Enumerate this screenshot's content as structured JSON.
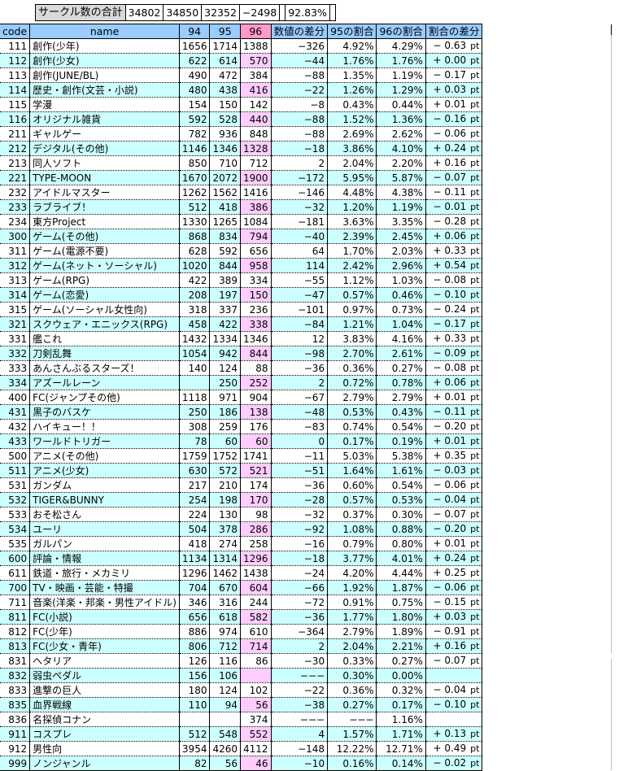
{
  "summary": {
    "label": "サークル数の合計",
    "v94": "34802",
    "v95": "34850",
    "v96": "32352",
    "diff": "−2498",
    "r95": "",
    "r96": "92.83%",
    "rdiff": ""
  },
  "header": {
    "code": "code",
    "name": "name",
    "c94": "94",
    "c95": "95",
    "c96": "96",
    "diff": "数値の差分",
    "r95": "95の割合",
    "r96": "96の割合",
    "rdiff": "割合の差分"
  },
  "colors": {
    "header_bg": "#99ccff",
    "header_96_bg": "#ff99cc",
    "alt_row_bg": "#ccffff",
    "alt_96_bg": "#ffccff",
    "summary_label_bg": "#d9d9d9"
  },
  "rows": [
    {
      "code": "111",
      "name": "創作(少年)",
      "v94": "1656",
      "v95": "1714",
      "v96": "1388",
      "diff": "−326",
      "r95": "4.92%",
      "r96": "4.29%",
      "rdiff": "− 0.63",
      "unit": "pt"
    },
    {
      "code": "112",
      "name": "創作(少女)",
      "v94": "622",
      "v95": "614",
      "v96": "570",
      "diff": "−44",
      "r95": "1.76%",
      "r96": "1.76%",
      "rdiff": "+ 0.00",
      "unit": "pt"
    },
    {
      "code": "113",
      "name": "創作(JUNE/BL)",
      "v94": "490",
      "v95": "472",
      "v96": "384",
      "diff": "−88",
      "r95": "1.35%",
      "r96": "1.19%",
      "rdiff": "− 0.17",
      "unit": "pt"
    },
    {
      "code": "114",
      "name": "歴史・創作(文芸・小説)",
      "v94": "480",
      "v95": "438",
      "v96": "416",
      "diff": "−22",
      "r95": "1.26%",
      "r96": "1.29%",
      "rdiff": "+ 0.03",
      "unit": "pt"
    },
    {
      "code": "115",
      "name": "学漫",
      "v94": "154",
      "v95": "150",
      "v96": "142",
      "diff": "−8",
      "r95": "0.43%",
      "r96": "0.44%",
      "rdiff": "+ 0.01",
      "unit": "pt"
    },
    {
      "code": "116",
      "name": "オリジナル雑貨",
      "v94": "592",
      "v95": "528",
      "v96": "440",
      "diff": "−88",
      "r95": "1.52%",
      "r96": "1.36%",
      "rdiff": "− 0.16",
      "unit": "pt"
    },
    {
      "code": "211",
      "name": "ギャルゲー",
      "v94": "782",
      "v95": "936",
      "v96": "848",
      "diff": "−88",
      "r95": "2.69%",
      "r96": "2.62%",
      "rdiff": "− 0.06",
      "unit": "pt"
    },
    {
      "code": "212",
      "name": "デジタル(その他)",
      "v94": "1146",
      "v95": "1346",
      "v96": "1328",
      "diff": "−18",
      "r95": "3.86%",
      "r96": "4.10%",
      "rdiff": "+ 0.24",
      "unit": "pt"
    },
    {
      "code": "213",
      "name": "同人ソフト",
      "v94": "850",
      "v95": "710",
      "v96": "712",
      "diff": "2",
      "r95": "2.04%",
      "r96": "2.20%",
      "rdiff": "+ 0.16",
      "unit": "pt"
    },
    {
      "code": "221",
      "name": "TYPE-MOON",
      "v94": "1670",
      "v95": "2072",
      "v96": "1900",
      "diff": "−172",
      "r95": "5.95%",
      "r96": "5.87%",
      "rdiff": "− 0.07",
      "unit": "pt"
    },
    {
      "code": "232",
      "name": "アイドルマスター",
      "v94": "1262",
      "v95": "1562",
      "v96": "1416",
      "diff": "−146",
      "r95": "4.48%",
      "r96": "4.38%",
      "rdiff": "− 0.11",
      "unit": "pt"
    },
    {
      "code": "233",
      "name": "ラブライブ！",
      "v94": "512",
      "v95": "418",
      "v96": "386",
      "diff": "−32",
      "r95": "1.20%",
      "r96": "1.19%",
      "rdiff": "− 0.01",
      "unit": "pt"
    },
    {
      "code": "234",
      "name": "東方Project",
      "v94": "1330",
      "v95": "1265",
      "v96": "1084",
      "diff": "−181",
      "r95": "3.63%",
      "r96": "3.35%",
      "rdiff": "− 0.28",
      "unit": "pt"
    },
    {
      "code": "300",
      "name": "ゲーム(その他)",
      "v94": "868",
      "v95": "834",
      "v96": "794",
      "diff": "−40",
      "r95": "2.39%",
      "r96": "2.45%",
      "rdiff": "+ 0.06",
      "unit": "pt"
    },
    {
      "code": "311",
      "name": "ゲーム(電源不要)",
      "v94": "628",
      "v95": "592",
      "v96": "656",
      "diff": "64",
      "r95": "1.70%",
      "r96": "2.03%",
      "rdiff": "+ 0.33",
      "unit": "pt"
    },
    {
      "code": "312",
      "name": "ゲーム(ネット・ソーシャル)",
      "v94": "1020",
      "v95": "844",
      "v96": "958",
      "diff": "114",
      "r95": "2.42%",
      "r96": "2.96%",
      "rdiff": "+ 0.54",
      "unit": "pt"
    },
    {
      "code": "313",
      "name": "ゲーム(RPG)",
      "v94": "422",
      "v95": "389",
      "v96": "334",
      "diff": "−55",
      "r95": "1.12%",
      "r96": "1.03%",
      "rdiff": "− 0.08",
      "unit": "pt"
    },
    {
      "code": "314",
      "name": "ゲーム(恋愛)",
      "v94": "208",
      "v95": "197",
      "v96": "150",
      "diff": "−47",
      "r95": "0.57%",
      "r96": "0.46%",
      "rdiff": "− 0.10",
      "unit": "pt"
    },
    {
      "code": "315",
      "name": "ゲーム(ソーシャル女性向)",
      "v94": "318",
      "v95": "337",
      "v96": "236",
      "diff": "−101",
      "r95": "0.97%",
      "r96": "0.73%",
      "rdiff": "− 0.24",
      "unit": "pt"
    },
    {
      "code": "321",
      "name": "スクウェア・エニックス(RPG)",
      "v94": "458",
      "v95": "422",
      "v96": "338",
      "diff": "−84",
      "r95": "1.21%",
      "r96": "1.04%",
      "rdiff": "− 0.17",
      "unit": "pt"
    },
    {
      "code": "331",
      "name": "艦これ",
      "v94": "1432",
      "v95": "1334",
      "v96": "1346",
      "diff": "12",
      "r95": "3.83%",
      "r96": "4.16%",
      "rdiff": "+ 0.33",
      "unit": "pt"
    },
    {
      "code": "332",
      "name": "刀剣乱舞",
      "v94": "1054",
      "v95": "942",
      "v96": "844",
      "diff": "−98",
      "r95": "2.70%",
      "r96": "2.61%",
      "rdiff": "− 0.09",
      "unit": "pt"
    },
    {
      "code": "333",
      "name": "あんさんぶるスターズ！",
      "v94": "140",
      "v95": "124",
      "v96": "88",
      "diff": "−36",
      "r95": "0.36%",
      "r96": "0.27%",
      "rdiff": "− 0.08",
      "unit": "pt"
    },
    {
      "code": "334",
      "name": "アズールレーン",
      "v94": "",
      "v95": "250",
      "v96": "252",
      "diff": "2",
      "r95": "0.72%",
      "r96": "0.78%",
      "rdiff": "+ 0.06",
      "unit": "pt"
    },
    {
      "code": "400",
      "name": "FC(ジャンプその他)",
      "v94": "1118",
      "v95": "971",
      "v96": "904",
      "diff": "−67",
      "r95": "2.79%",
      "r96": "2.79%",
      "rdiff": "+ 0.01",
      "unit": "pt"
    },
    {
      "code": "431",
      "name": "黒子のバスケ",
      "v94": "250",
      "v95": "186",
      "v96": "138",
      "diff": "−48",
      "r95": "0.53%",
      "r96": "0.43%",
      "rdiff": "− 0.11",
      "unit": "pt"
    },
    {
      "code": "432",
      "name": "ハイキュー！！",
      "v94": "308",
      "v95": "259",
      "v96": "176",
      "diff": "−83",
      "r95": "0.74%",
      "r96": "0.54%",
      "rdiff": "− 0.20",
      "unit": "pt"
    },
    {
      "code": "433",
      "name": "ワールドトリガー",
      "v94": "78",
      "v95": "60",
      "v96": "60",
      "diff": "0",
      "r95": "0.17%",
      "r96": "0.19%",
      "rdiff": "+ 0.01",
      "unit": "pt"
    },
    {
      "code": "500",
      "name": "アニメ(その他)",
      "v94": "1759",
      "v95": "1752",
      "v96": "1741",
      "diff": "−11",
      "r95": "5.03%",
      "r96": "5.38%",
      "rdiff": "+ 0.35",
      "unit": "pt"
    },
    {
      "code": "511",
      "name": "アニメ(少女)",
      "v94": "630",
      "v95": "572",
      "v96": "521",
      "diff": "−51",
      "r95": "1.64%",
      "r96": "1.61%",
      "rdiff": "− 0.03",
      "unit": "pt"
    },
    {
      "code": "531",
      "name": "ガンダム",
      "v94": "217",
      "v95": "210",
      "v96": "174",
      "diff": "−36",
      "r95": "0.60%",
      "r96": "0.54%",
      "rdiff": "− 0.06",
      "unit": "pt"
    },
    {
      "code": "532",
      "name": "TIGER&BUNNY",
      "v94": "254",
      "v95": "198",
      "v96": "170",
      "diff": "−28",
      "r95": "0.57%",
      "r96": "0.53%",
      "rdiff": "− 0.04",
      "unit": "pt"
    },
    {
      "code": "533",
      "name": "おそ松さん",
      "v94": "224",
      "v95": "130",
      "v96": "98",
      "diff": "−32",
      "r95": "0.37%",
      "r96": "0.30%",
      "rdiff": "− 0.07",
      "unit": "pt"
    },
    {
      "code": "534",
      "name": "ユーリ",
      "v94": "504",
      "v95": "378",
      "v96": "286",
      "diff": "−92",
      "r95": "1.08%",
      "r96": "0.88%",
      "rdiff": "− 0.20",
      "unit": "pt"
    },
    {
      "code": "535",
      "name": "ガルパン",
      "v94": "418",
      "v95": "274",
      "v96": "258",
      "diff": "−16",
      "r95": "0.79%",
      "r96": "0.80%",
      "rdiff": "+ 0.01",
      "unit": "pt"
    },
    {
      "code": "600",
      "name": "評論・情報",
      "v94": "1134",
      "v95": "1314",
      "v96": "1296",
      "diff": "−18",
      "r95": "3.77%",
      "r96": "4.01%",
      "rdiff": "+ 0.24",
      "unit": "pt"
    },
    {
      "code": "611",
      "name": "鉄道・旅行・メカミリ",
      "v94": "1296",
      "v95": "1462",
      "v96": "1438",
      "diff": "−24",
      "r95": "4.20%",
      "r96": "4.44%",
      "rdiff": "+ 0.25",
      "unit": "pt"
    },
    {
      "code": "700",
      "name": "TV・映画・芸能・特撮",
      "v94": "704",
      "v95": "670",
      "v96": "604",
      "diff": "−66",
      "r95": "1.92%",
      "r96": "1.87%",
      "rdiff": "− 0.06",
      "unit": "pt"
    },
    {
      "code": "711",
      "name": "音楽(洋楽・邦楽・男性アイドル)",
      "v94": "346",
      "v95": "316",
      "v96": "244",
      "diff": "−72",
      "r95": "0.91%",
      "r96": "0.75%",
      "rdiff": "− 0.15",
      "unit": "pt"
    },
    {
      "code": "811",
      "name": "FC(小説)",
      "v94": "656",
      "v95": "618",
      "v96": "582",
      "diff": "−36",
      "r95": "1.77%",
      "r96": "1.80%",
      "rdiff": "+ 0.03",
      "unit": "pt"
    },
    {
      "code": "812",
      "name": "FC(少年)",
      "v94": "886",
      "v95": "974",
      "v96": "610",
      "diff": "−364",
      "r95": "2.79%",
      "r96": "1.89%",
      "rdiff": "− 0.91",
      "unit": "pt"
    },
    {
      "code": "813",
      "name": "FC(少女・青年)",
      "v94": "806",
      "v95": "712",
      "v96": "714",
      "diff": "2",
      "r95": "2.04%",
      "r96": "2.21%",
      "rdiff": "+ 0.16",
      "unit": "pt"
    },
    {
      "code": "831",
      "name": "ヘタリア",
      "v94": "126",
      "v95": "116",
      "v96": "86",
      "diff": "−30",
      "r95": "0.33%",
      "r96": "0.27%",
      "rdiff": "− 0.07",
      "unit": "pt"
    },
    {
      "code": "832",
      "name": "弱虫ペダル",
      "v94": "156",
      "v95": "106",
      "v96": "",
      "diff": "−−−",
      "r95": "0.30%",
      "r96": "0.00%",
      "rdiff": "",
      "unit": ""
    },
    {
      "code": "833",
      "name": "進撃の巨人",
      "v94": "180",
      "v95": "124",
      "v96": "102",
      "diff": "−22",
      "r95": "0.36%",
      "r96": "0.32%",
      "rdiff": "− 0.04",
      "unit": "pt"
    },
    {
      "code": "835",
      "name": "血界戦線",
      "v94": "110",
      "v95": "94",
      "v96": "56",
      "diff": "−38",
      "r95": "0.27%",
      "r96": "0.17%",
      "rdiff": "− 0.10",
      "unit": "pt"
    },
    {
      "code": "836",
      "name": "名探偵コナン",
      "v94": "",
      "v95": "",
      "v96": "374",
      "diff": "−−−",
      "r95": "−−−",
      "r96": "1.16%",
      "rdiff": "",
      "unit": ""
    },
    {
      "code": "911",
      "name": "コスプレ",
      "v94": "512",
      "v95": "548",
      "v96": "552",
      "diff": "4",
      "r95": "1.57%",
      "r96": "1.71%",
      "rdiff": "+ 0.13",
      "unit": "pt"
    },
    {
      "code": "912",
      "name": "男性向",
      "v94": "3954",
      "v95": "4260",
      "v96": "4112",
      "diff": "−148",
      "r95": "12.22%",
      "r96": "12.71%",
      "rdiff": "+ 0.49",
      "unit": "pt"
    },
    {
      "code": "999",
      "name": "ノンジャンル",
      "v94": "82",
      "v95": "56",
      "v96": "46",
      "diff": "−10",
      "r95": "0.16%",
      "r96": "0.14%",
      "rdiff": "− 0.02",
      "unit": "pt"
    }
  ]
}
